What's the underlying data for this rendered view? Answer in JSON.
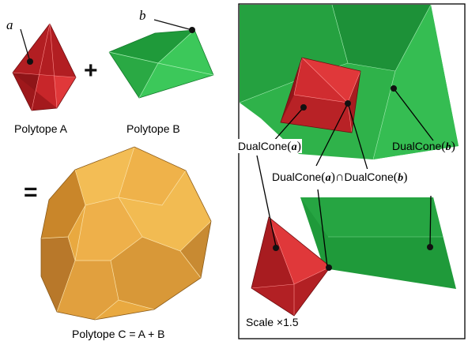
{
  "polytope_a": {
    "label": "Polytope A",
    "vertex": "a"
  },
  "polytope_b": {
    "label": "Polytope B",
    "vertex": "b"
  },
  "polytope_c": {
    "label": "Polytope C = A + B"
  },
  "operators": {
    "plus": "+",
    "equals": "="
  },
  "inset": {
    "dualcone_a": {
      "prefix": "DualCone",
      "open": "(",
      "var": "a",
      "close": ")"
    },
    "dualcone_b": {
      "prefix": "DualCone",
      "open": "(",
      "var": "b",
      "close": ")"
    },
    "intersection": {
      "prefix1": "DualCone",
      "var1": "a",
      "cap": "∩",
      "prefix2": "DualCone",
      "var2": "b",
      "open": "(",
      "close": ")"
    },
    "scale": "Scale ×1.5"
  },
  "colors": {
    "red": "#d22a2c",
    "green": "#2fb24a",
    "orange": "#e2a63a"
  }
}
